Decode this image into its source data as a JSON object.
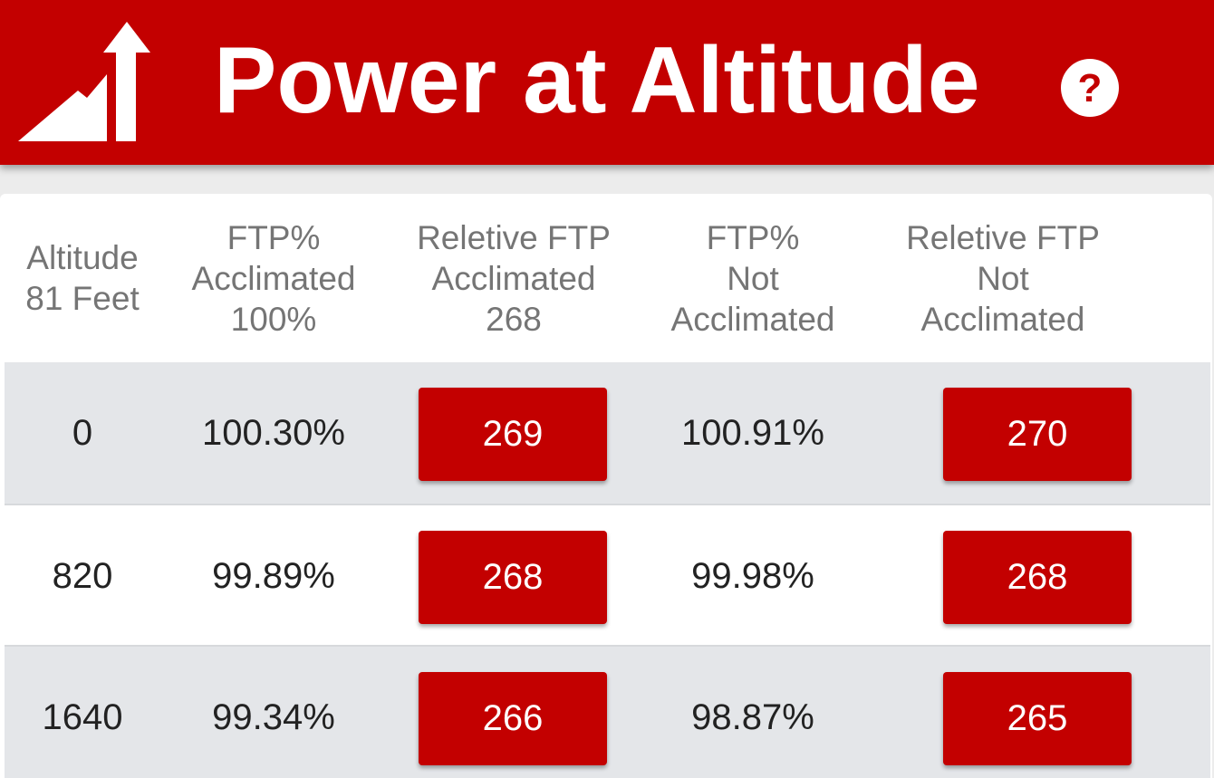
{
  "app": {
    "title": "Power at Altitude",
    "accent_color": "#c30000",
    "logo_icon": "mountain-arrow-icon",
    "help_icon": "question-icon"
  },
  "table": {
    "headers": [
      [
        "Altitude",
        "81 Feet"
      ],
      [
        "FTP%",
        "Acclimated",
        "100%"
      ],
      [
        "Reletive FTP",
        "Acclimated",
        "268"
      ],
      [
        "FTP%",
        "Not",
        "Acclimated"
      ],
      [
        "Reletive FTP",
        "Not",
        "Acclimated"
      ]
    ],
    "rows": [
      {
        "altitude": "0",
        "ftp_acclimated": "100.30%",
        "rel_acclimated": "269",
        "ftp_not": "100.91%",
        "rel_not": "270"
      },
      {
        "altitude": "820",
        "ftp_acclimated": "99.89%",
        "rel_acclimated": "268",
        "ftp_not": "99.98%",
        "rel_not": "268"
      },
      {
        "altitude": "1640",
        "ftp_acclimated": "99.34%",
        "rel_acclimated": "266",
        "ftp_not": "98.87%",
        "rel_not": "265"
      }
    ]
  }
}
